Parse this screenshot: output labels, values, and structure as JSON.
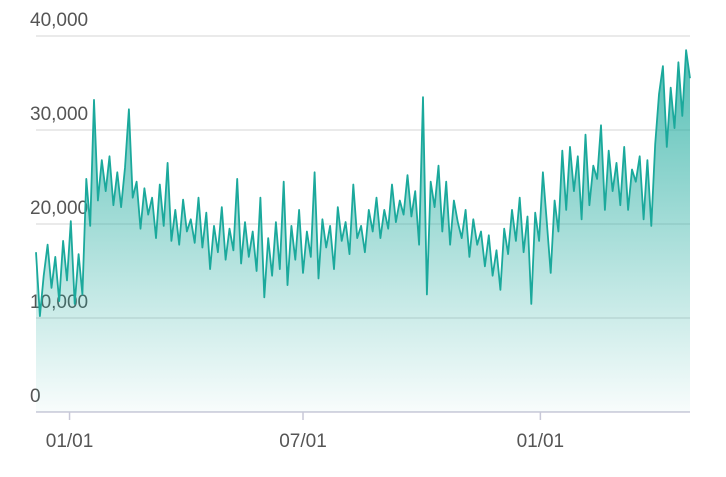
{
  "chart_data": {
    "type": "area",
    "x": [
      0,
      3,
      6,
      9,
      12,
      15,
      18,
      21,
      24,
      27,
      30,
      33,
      36,
      39,
      42,
      45,
      48,
      51,
      54,
      57,
      60,
      63,
      66,
      69,
      72,
      75,
      78,
      81,
      84,
      87,
      90,
      93,
      96,
      99,
      102,
      105,
      108,
      111,
      114,
      117,
      120,
      123,
      126,
      129,
      132,
      135,
      138,
      141,
      144,
      147,
      150,
      153,
      156,
      159,
      162,
      165,
      168,
      171,
      174,
      177,
      180,
      183,
      186,
      189,
      192,
      195,
      198,
      201,
      204,
      207,
      210,
      213,
      216,
      219,
      222,
      225,
      228,
      231,
      234,
      237,
      240,
      243,
      246,
      249,
      252,
      255,
      258,
      261,
      264,
      267,
      270,
      273,
      276,
      279,
      282,
      285,
      288,
      291,
      294,
      297,
      300,
      303,
      306,
      309,
      312,
      315,
      318,
      321,
      324,
      327,
      330,
      333,
      336,
      339,
      342,
      345,
      348,
      351,
      354,
      357,
      360,
      363,
      366,
      369,
      372,
      375,
      378,
      381,
      384,
      387,
      390,
      393,
      396,
      399,
      402,
      405,
      408,
      411,
      414,
      417,
      420,
      423,
      426,
      429,
      432,
      435,
      438,
      441,
      444,
      447,
      450,
      453,
      456,
      459,
      462,
      465,
      468,
      471,
      474,
      477,
      480,
      483,
      486,
      489,
      492,
      495,
      498,
      501,
      504,
      507
    ],
    "series": [
      {
        "color": "#1ba99c",
        "values": [
          17000,
          10200,
          14500,
          17800,
          13200,
          16500,
          11800,
          18200,
          14000,
          20300,
          11500,
          16800,
          12500,
          24800,
          19800,
          33200,
          22500,
          26800,
          23500,
          27200,
          22000,
          25500,
          21800,
          26000,
          32200,
          22800,
          24500,
          19500,
          23800,
          21000,
          22800,
          18500,
          24200,
          19800,
          26500,
          18200,
          21500,
          17800,
          22600,
          19200,
          20500,
          18000,
          22800,
          17500,
          21200,
          15200,
          19800,
          17000,
          21800,
          16200,
          19500,
          17200,
          24800,
          15800,
          20200,
          16500,
          19200,
          15000,
          22800,
          12200,
          18500,
          14500,
          20200,
          15200,
          24500,
          13500,
          19800,
          16200,
          21500,
          14800,
          19200,
          16500,
          25500,
          14200,
          20500,
          17500,
          19800,
          15200,
          21800,
          18200,
          20200,
          16800,
          24200,
          18500,
          19800,
          17000,
          21500,
          19200,
          22800,
          18500,
          21500,
          19500,
          24200,
          20200,
          22500,
          21000,
          25200,
          20800,
          23500,
          17800,
          33500,
          12500,
          24500,
          21800,
          26200,
          19200,
          24500,
          17800,
          22500,
          20200,
          18500,
          21500,
          16500,
          20500,
          17800,
          19200,
          15500,
          18800,
          14500,
          17200,
          13000,
          19500,
          16800,
          21500,
          18200,
          22800,
          17000,
          20800,
          11500,
          21200,
          18200,
          25500,
          20200,
          14800,
          22500,
          19200,
          27800,
          21500,
          28200,
          23500,
          27200,
          20500,
          29500,
          22000,
          26200,
          24800,
          30500,
          21500,
          27800,
          23500,
          26500,
          22000,
          28200,
          21500,
          25800,
          24500,
          27200,
          20500,
          26800,
          19800,
          28500,
          33800,
          36800,
          28200,
          34500,
          30200,
          37200,
          31500,
          38500,
          35500
        ]
      }
    ],
    "xlim": [
      0,
      507
    ],
    "xticks": [
      {
        "value": 26,
        "label": "01/01"
      },
      {
        "value": 207,
        "label": "07/01"
      },
      {
        "value": 391,
        "label": "01/01"
      }
    ],
    "ylim": [
      0,
      40000
    ],
    "yticks": [
      0,
      {
        "value": 10000,
        "label": "10,000"
      },
      {
        "value": 20000,
        "label": "20,000"
      },
      {
        "value": 30000,
        "label": "30,000"
      },
      {
        "value": 40000,
        "label": "40,000"
      }
    ],
    "grid": true
  }
}
